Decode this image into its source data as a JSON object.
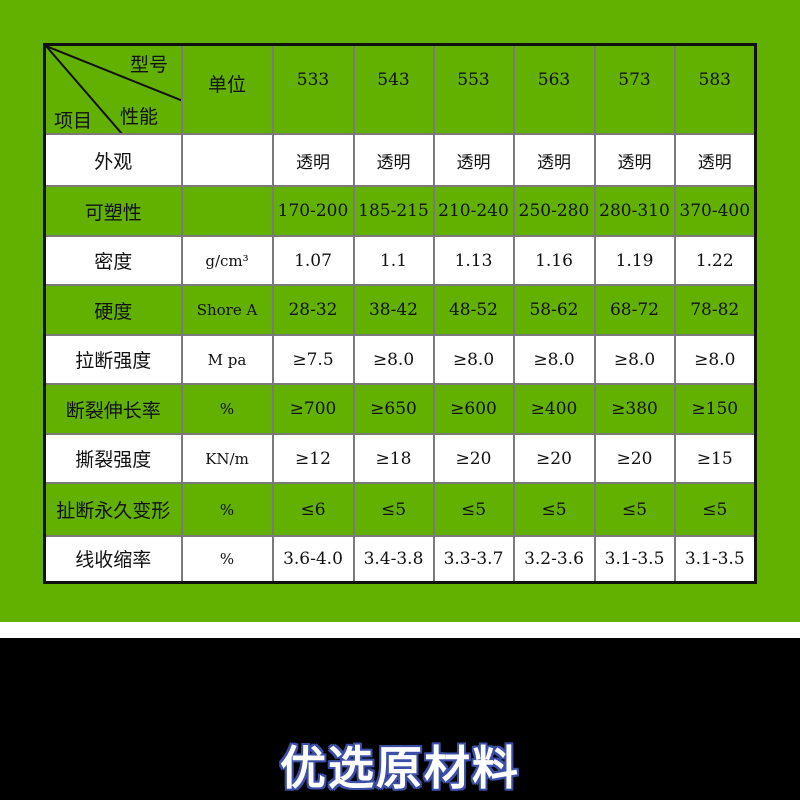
{
  "colors": {
    "green": "#62b000",
    "white": "#ffffff",
    "black": "#000000",
    "title_outline": "#3b4fa8"
  },
  "header": {
    "corner_top": "型号",
    "corner_mid": "性能",
    "corner_left": "项目",
    "unit": "单位",
    "models": [
      "533",
      "543",
      "553",
      "563",
      "573",
      "583"
    ]
  },
  "rows": [
    {
      "label": "外观",
      "unit": "",
      "values": [
        "透明",
        "透明",
        "透明",
        "透明",
        "透明",
        "透明"
      ]
    },
    {
      "label": "可塑性",
      "unit": "",
      "values": [
        "170-200",
        "185-215",
        "210-240",
        "250-280",
        "280-310",
        "370-400"
      ]
    },
    {
      "label": "密度",
      "unit": "g/cm³",
      "values": [
        "1.07",
        "1.1",
        "1.13",
        "1.16",
        "1.19",
        "1.22"
      ]
    },
    {
      "label": "硬度",
      "unit": "Shore A",
      "values": [
        "28-32",
        "38-42",
        "48-52",
        "58-62",
        "68-72",
        "78-82"
      ]
    },
    {
      "label": "拉断强度",
      "unit": "M pa",
      "values": [
        "≥7.5",
        "≥8.0",
        "≥8.0",
        "≥8.0",
        "≥8.0",
        "≥8.0"
      ]
    },
    {
      "label": "断裂伸长率",
      "unit": "%",
      "values": [
        "≥700",
        "≥650",
        "≥600",
        "≥400",
        "≥380",
        "≥150"
      ]
    },
    {
      "label": "撕裂强度",
      "unit": "KN/m",
      "values": [
        "≥12",
        "≥18",
        "≥20",
        "≥20",
        "≥20",
        "≥15"
      ]
    },
    {
      "label": "扯断永久变形",
      "unit": "%",
      "values": [
        "≤6",
        "≤5",
        "≤5",
        "≤5",
        "≤5",
        "≤5"
      ]
    },
    {
      "label": "线收缩率",
      "unit": "%",
      "values": [
        "3.6-4.0",
        "3.4-3.8",
        "3.3-3.7",
        "3.2-3.6",
        "3.1-3.5",
        "3.1-3.5"
      ]
    }
  ],
  "section_title": "优选原材料"
}
